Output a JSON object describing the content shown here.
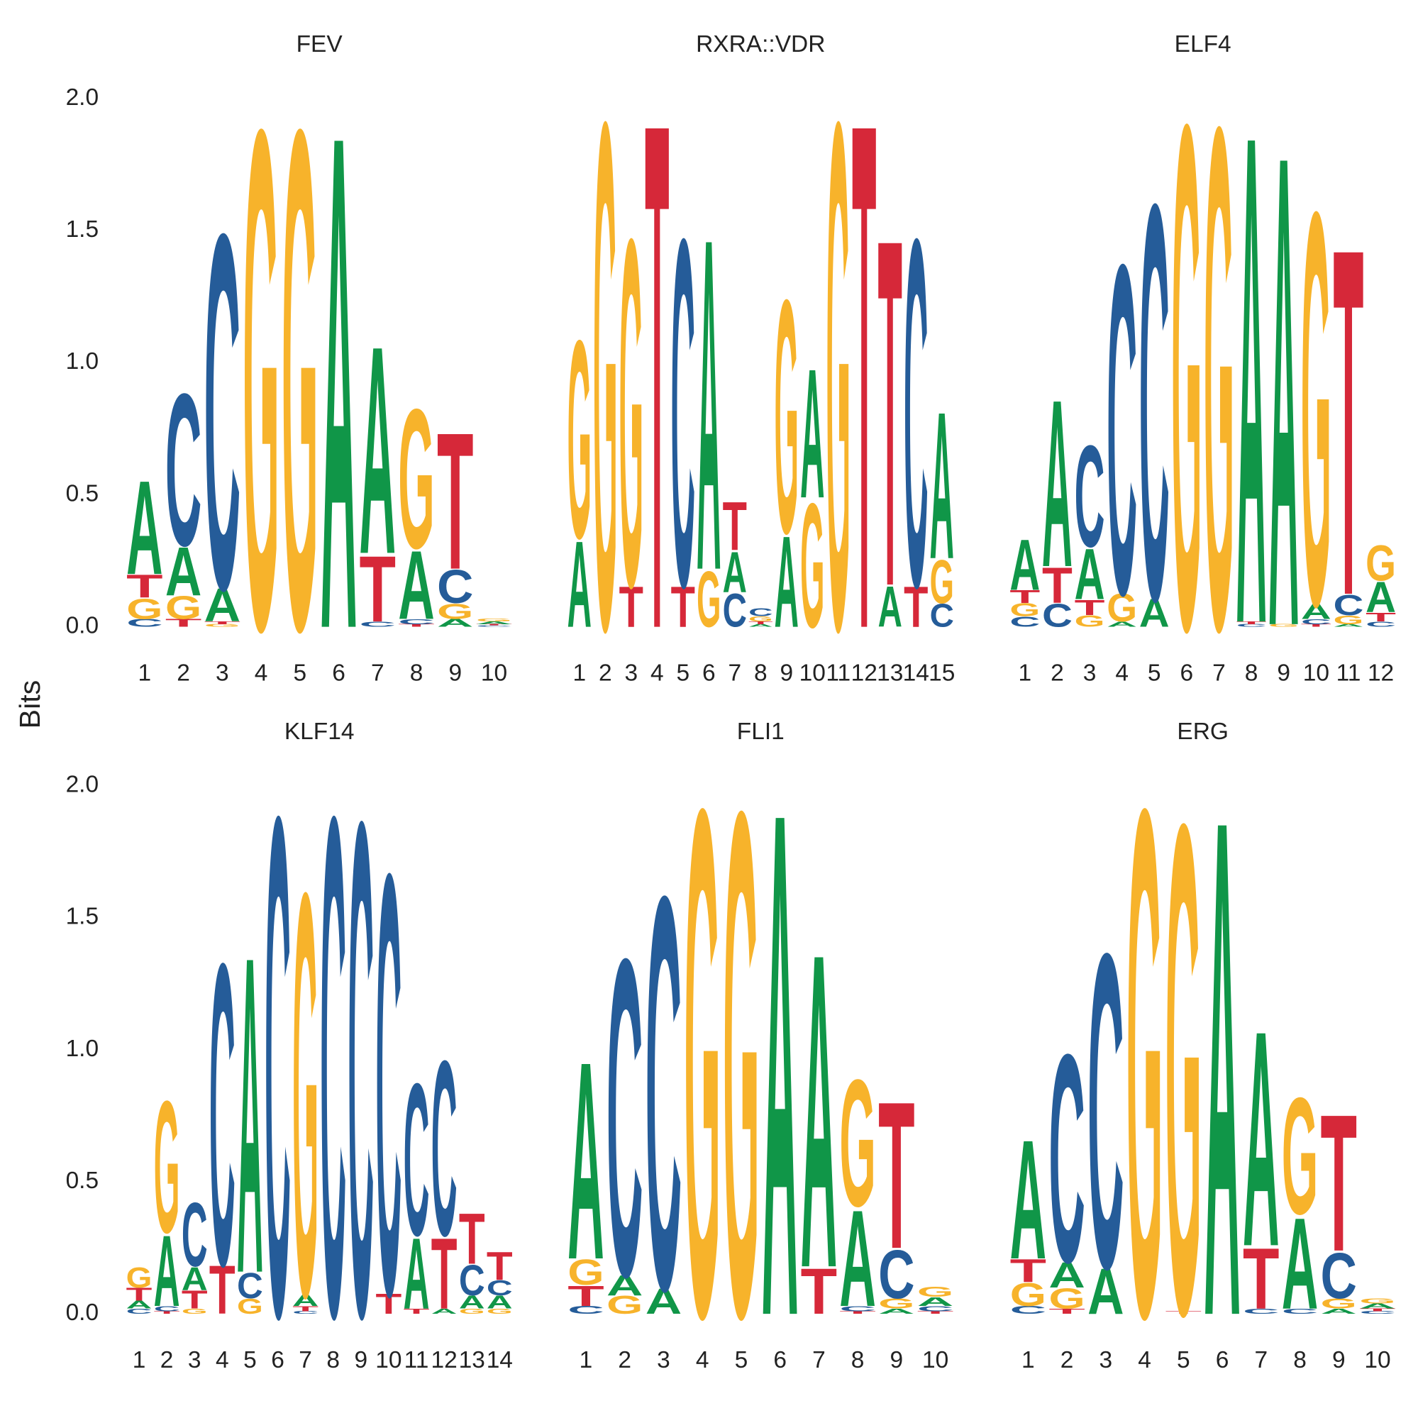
{
  "ylabel": "Bits",
  "chart_data": [
    {
      "type": "logo",
      "title": "FEV",
      "categories": [
        "1",
        "2",
        "3",
        "4",
        "5",
        "6",
        "7",
        "8",
        "9",
        "10"
      ],
      "ylim": [
        0,
        2
      ],
      "yticks": [
        {
          "value": 0,
          "label": "0.0"
        },
        {
          "value": 0.5,
          "label": "0.5"
        },
        {
          "value": 1,
          "label": "1.0"
        },
        {
          "value": 1.5,
          "label": "1.5"
        },
        {
          "value": 2,
          "label": "2.0"
        }
      ],
      "series": [
        {
          "name": "A",
          "color": "#109648",
          "values": [
            0.37,
            0.19,
            0.13,
            0,
            0,
            1.95,
            0.82,
            0.27,
            0.03,
            0.01
          ]
        },
        {
          "name": "C",
          "color": "#255C99",
          "values": [
            0.03,
            0.6,
            1.4,
            0,
            0,
            0,
            0.02,
            0.02,
            0.13,
            0.005
          ]
        },
        {
          "name": "G",
          "color": "#F7B32B",
          "values": [
            0.08,
            0.09,
            0.01,
            1.97,
            1.97,
            0,
            0,
            0.55,
            0.06,
            0.01
          ]
        },
        {
          "name": "T",
          "color": "#D62839",
          "values": [
            0.09,
            0.03,
            0.01,
            0,
            0,
            0,
            0.26,
            0.01,
            0.54,
            0.005
          ]
        }
      ]
    },
    {
      "type": "logo",
      "title": "RXRA::VDR",
      "categories": [
        "1",
        "2",
        "3",
        "4",
        "5",
        "6",
        "7",
        "8",
        "9",
        "10",
        "11",
        "12",
        "13",
        "14",
        "15"
      ],
      "ylim": [
        0,
        2
      ],
      "series": [
        {
          "name": "A",
          "color": "#109648",
          "values": [
            0.34,
            0,
            0,
            0,
            0,
            1.31,
            0.16,
            0.01,
            0.36,
            0.51,
            0,
            0,
            0.16,
            0,
            0.58
          ]
        },
        {
          "name": "C",
          "color": "#255C99",
          "values": [
            0,
            0,
            0,
            0,
            1.37,
            0,
            0.13,
            0.03,
            0,
            0,
            0,
            0,
            0,
            1.37,
            0.09
          ]
        },
        {
          "name": "G",
          "color": "#F7B32B",
          "values": [
            0.78,
            2.0,
            1.37,
            0,
            0,
            0.22,
            0,
            0.02,
            0.92,
            0.49,
            2.0,
            0,
            0,
            0,
            0.17
          ]
        },
        {
          "name": "T",
          "color": "#D62839",
          "values": [
            0,
            0,
            0.16,
            2.0,
            0.16,
            0,
            0.19,
            0.01,
            0,
            0,
            0,
            2.0,
            1.37,
            0.16,
            0
          ]
        }
      ]
    },
    {
      "type": "logo",
      "title": "ELF4",
      "categories": [
        "1",
        "2",
        "3",
        "4",
        "5",
        "6",
        "7",
        "8",
        "9",
        "10",
        "11",
        "12"
      ],
      "ylim": [
        0,
        2
      ],
      "series": [
        {
          "name": "A",
          "color": "#109648",
          "values": [
            0.2,
            0.66,
            0.2,
            0.02,
            0.11,
            0,
            0,
            1.93,
            1.86,
            0.06,
            0.01,
            0.12
          ]
        },
        {
          "name": "C",
          "color": "#255C99",
          "values": [
            0.04,
            0.09,
            0.4,
            1.3,
            1.56,
            0,
            0,
            0.01,
            0,
            0.02,
            0.08,
            0.02
          ]
        },
        {
          "name": "G",
          "color": "#F7B32B",
          "values": [
            0.05,
            0,
            0.045,
            0.11,
            0,
            1.99,
            1.98,
            0,
            0.01,
            1.55,
            0.035,
            0.14
          ]
        },
        {
          "name": "T",
          "color": "#D62839",
          "values": [
            0.05,
            0.14,
            0.06,
            0,
            0,
            0,
            0,
            0.01,
            0,
            0.01,
            1.37,
            0.035
          ]
        }
      ]
    },
    {
      "type": "logo",
      "title": "KLF14",
      "categories": [
        "1",
        "2",
        "3",
        "4",
        "5",
        "6",
        "7",
        "8",
        "9",
        "10",
        "11",
        "12",
        "13",
        "14"
      ],
      "ylim": [
        0,
        2
      ],
      "yticks": [
        {
          "value": 0,
          "label": "0.0"
        },
        {
          "value": 0.5,
          "label": "0.5"
        },
        {
          "value": 1,
          "label": "1.0"
        },
        {
          "value": 1.5,
          "label": "1.5"
        },
        {
          "value": 2,
          "label": "2.0"
        }
      ],
      "series": [
        {
          "name": "A",
          "color": "#109648",
          "values": [
            0.03,
            0.28,
            0.09,
            0,
            1.25,
            0,
            0.045,
            0,
            0,
            0,
            0.28,
            0.02,
            0.05,
            0.05
          ]
        },
        {
          "name": "C",
          "color": "#255C99",
          "values": [
            0.02,
            0.02,
            0.25,
            1.19,
            0.1,
            1.97,
            0.01,
            1.97,
            1.95,
            1.66,
            0.6,
            0.69,
            0.12,
            0.06
          ]
        },
        {
          "name": "G",
          "color": "#F7B32B",
          "values": [
            0.08,
            0.52,
            0.02,
            0,
            0.06,
            0,
            1.59,
            0,
            0,
            0,
            0,
            0,
            0.02,
            0.02
          ]
        },
        {
          "name": "T",
          "color": "#D62839",
          "values": [
            0.05,
            0.01,
            0.07,
            0.19,
            0,
            0,
            0.02,
            0,
            0,
            0.08,
            0.02,
            0.28,
            0.2,
            0.11
          ]
        }
      ]
    },
    {
      "type": "logo",
      "title": "FLI1",
      "categories": [
        "1",
        "2",
        "3",
        "4",
        "5",
        "6",
        "7",
        "8",
        "9",
        "10"
      ],
      "ylim": [
        0,
        2
      ],
      "series": [
        {
          "name": "A",
          "color": "#109648",
          "values": [
            0.78,
            0.08,
            0.1,
            0,
            0,
            1.99,
            1.24,
            0.38,
            0.02,
            0.035
          ]
        },
        {
          "name": "C",
          "color": "#255C99",
          "values": [
            0.03,
            1.25,
            1.55,
            0,
            0,
            0,
            0,
            0.02,
            0.19,
            0.02
          ]
        },
        {
          "name": "G",
          "color": "#F7B32B",
          "values": [
            0.1,
            0.07,
            0,
            2.0,
            1.99,
            0,
            0,
            0.5,
            0.04,
            0.04
          ]
        },
        {
          "name": "T",
          "color": "#D62839",
          "values": [
            0.08,
            0,
            0,
            0,
            0,
            0,
            0.18,
            0.01,
            0.58,
            0.01
          ]
        }
      ]
    },
    {
      "type": "logo",
      "title": "ERG",
      "categories": [
        "1",
        "2",
        "3",
        "4",
        "5",
        "6",
        "7",
        "8",
        "9",
        "10"
      ],
      "ylim": [
        0,
        2
      ],
      "series": [
        {
          "name": "A",
          "color": "#109648",
          "values": [
            0.47,
            0.1,
            0.18,
            0,
            0,
            1.96,
            0.85,
            0.36,
            0.02,
            0.02
          ]
        },
        {
          "name": "C",
          "color": "#255C99",
          "values": [
            0.03,
            0.82,
            1.24,
            0,
            0,
            0,
            0.02,
            0.02,
            0.18,
            0.01
          ]
        },
        {
          "name": "G",
          "color": "#F7B32B",
          "values": [
            0.09,
            0.08,
            0,
            2.0,
            1.93,
            0,
            0,
            0.46,
            0.04,
            0.02
          ]
        },
        {
          "name": "T",
          "color": "#D62839",
          "values": [
            0.09,
            0.02,
            0,
            0,
            0.01,
            0,
            0.24,
            0,
            0.54,
            0.01
          ]
        }
      ]
    }
  ]
}
